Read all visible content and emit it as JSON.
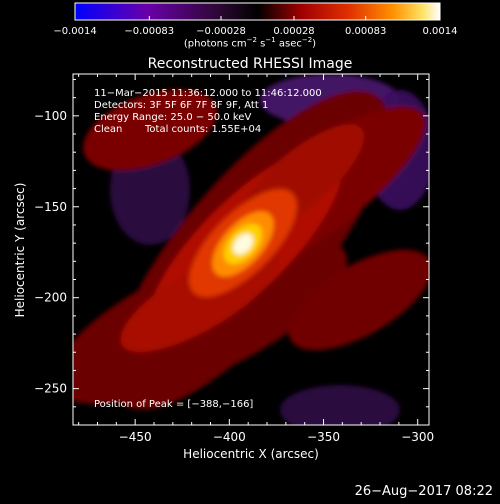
{
  "chart_data": {
    "type": "heatmap",
    "title": "Reconstructed RHESSI Image",
    "xlabel": "Heliocentric X (arcsec)",
    "ylabel": "Heliocentric Y (arcsec)",
    "xlim": [
      -483,
      -294
    ],
    "ylim": [
      -270,
      -77
    ],
    "x_ticks": [
      -450,
      -400,
      -350,
      -300
    ],
    "y_ticks": [
      -100,
      -150,
      -200,
      -250
    ],
    "x_tick_labels": [
      "−450",
      "−400",
      "−350",
      "−300"
    ],
    "y_tick_labels": [
      "−100",
      "−150",
      "−200",
      "−250"
    ],
    "colorbar": {
      "range": [
        -0.0014,
        0.0014
      ],
      "ticks": [
        -0.0014,
        -0.00083,
        -0.00028,
        0.00028,
        0.00083,
        0.0014
      ],
      "tick_labels": [
        "−0.0014",
        "−0.00083",
        "−0.00028",
        "0.00028",
        "0.00083",
        "0.0014"
      ],
      "unit_parts": [
        "(photons cm",
        "−2",
        " s",
        "−1",
        " asec",
        "−2",
        ")"
      ]
    },
    "info_lines": [
      "11−Mar−2015 11:36:12.000 to 11:46:12.000",
      "Detectors: 3F 5F 6F 7F 8F 9F, Att 1",
      "Energy Range: 25.0 − 50.0 keV"
    ],
    "method": "Clean",
    "total_counts": "Total counts: 1.55E+04",
    "peak_label": "Position of Peak = [−388,−166]",
    "peak": {
      "x": -388,
      "y": -166
    },
    "timestamp": "26−Aug−2017 08:22",
    "colors": {
      "background": "#000000",
      "foreground": "#ffffff",
      "cmap": [
        "#0000ff",
        "#6a00a8",
        "#3a1050",
        "#000000",
        "#8a0000",
        "#d82000",
        "#ff6a00",
        "#ffc000",
        "#ffffff"
      ]
    }
  }
}
